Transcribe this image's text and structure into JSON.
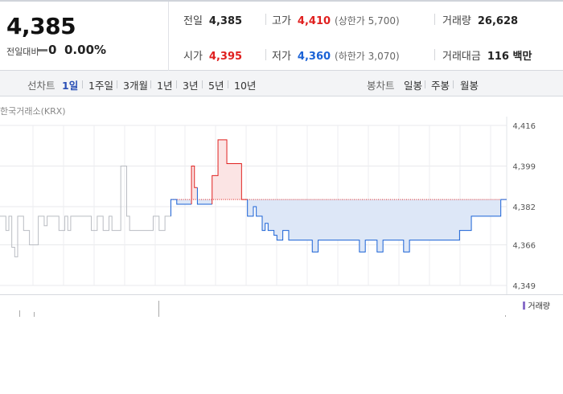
{
  "summary": {
    "price": "4,385",
    "change_label": "전일대비",
    "change_value": "0",
    "change_rate": "0.00%",
    "prev_close": {
      "label": "전일",
      "value": "4,385"
    },
    "high": {
      "label": "고가",
      "value": "4,410",
      "limit_label": "(상한가 5,700)"
    },
    "volume": {
      "label": "거래량",
      "value": "26,628"
    },
    "open": {
      "label": "시가",
      "value": "4,395"
    },
    "low": {
      "label": "저가",
      "value": "4,360",
      "limit_label": "(하한가 3,070)"
    },
    "trade_value": {
      "label": "거래대금",
      "value": "116 백만"
    }
  },
  "toolbar": {
    "line_chart_label": "선차트",
    "ranges": [
      "1일",
      "1주일",
      "3개월",
      "1년",
      "3년",
      "5년",
      "10년"
    ],
    "active_range": "1일",
    "candle_label": "봉차트",
    "candles": [
      "일봉",
      "주봉",
      "월봉"
    ]
  },
  "source_label": "한국거래소(KRX)",
  "volume_legend": "거래량",
  "colors": {
    "up": "#e0201f",
    "down": "#1a62d6",
    "flat": "#b9bcc2",
    "up_fill": "#fbe4e4",
    "down_fill": "#dde7f7",
    "base_line": "#e0201f"
  },
  "chart_data": {
    "type": "line",
    "title": "",
    "xlabel": "",
    "ylabel": "",
    "base": 4385,
    "ylim": [
      4349,
      4416
    ],
    "yticks": [
      4416,
      4399,
      4382,
      4366,
      4349
    ],
    "y_tick_labels": [
      "4,416",
      "4,399",
      "4,382",
      "4,366",
      "4,349"
    ],
    "series": [
      {
        "values": [
          4378,
          4378,
          4372,
          4378,
          4365,
          4361,
          4378,
          4378,
          4372,
          4372,
          4366,
          4366,
          4366,
          4378,
          4378,
          4374,
          4378,
          4378,
          4378,
          4378,
          4372,
          4372,
          4378,
          4372,
          4378,
          4378,
          4378,
          4378,
          4378,
          4378,
          4378,
          4372,
          4372,
          4378,
          4378,
          4372,
          4372,
          4378,
          4372,
          4372,
          4372,
          4399,
          4399,
          4378,
          4372,
          4372,
          4372,
          4372,
          4372,
          4372,
          4372,
          4372,
          4378,
          4378,
          4372,
          4372,
          4378,
          4378,
          4385,
          4385,
          4383,
          4383,
          4383,
          4383,
          4383,
          4399,
          4390,
          4383,
          4383,
          4383,
          4383,
          4383,
          4395,
          4395,
          4410,
          4410,
          4410,
          4400,
          4400,
          4400,
          4400,
          4400,
          4385,
          4385,
          4378,
          4378,
          4382,
          4378,
          4378,
          4372,
          4375,
          4372,
          4372,
          4370,
          4368,
          4368,
          4372,
          4372,
          4368,
          4368,
          4368,
          4368,
          4368,
          4368,
          4368,
          4368,
          4363,
          4363,
          4368,
          4368,
          4368,
          4368,
          4368,
          4368,
          4368,
          4368,
          4368,
          4368,
          4368,
          4368,
          4368,
          4368,
          4363,
          4363,
          4368,
          4368,
          4368,
          4368,
          4363,
          4363,
          4368,
          4368,
          4368,
          4368,
          4368,
          4368,
          4368,
          4363,
          4363,
          4368,
          4368,
          4368,
          4368,
          4368,
          4368,
          4368,
          4368,
          4368,
          4368,
          4368,
          4368,
          4368,
          4368,
          4368,
          4368,
          4368,
          4372,
          4372,
          4372,
          4372,
          4378,
          4378,
          4378,
          4378,
          4378,
          4378,
          4378,
          4378,
          4378,
          4378,
          4385,
          4385
        ]
      }
    ]
  }
}
